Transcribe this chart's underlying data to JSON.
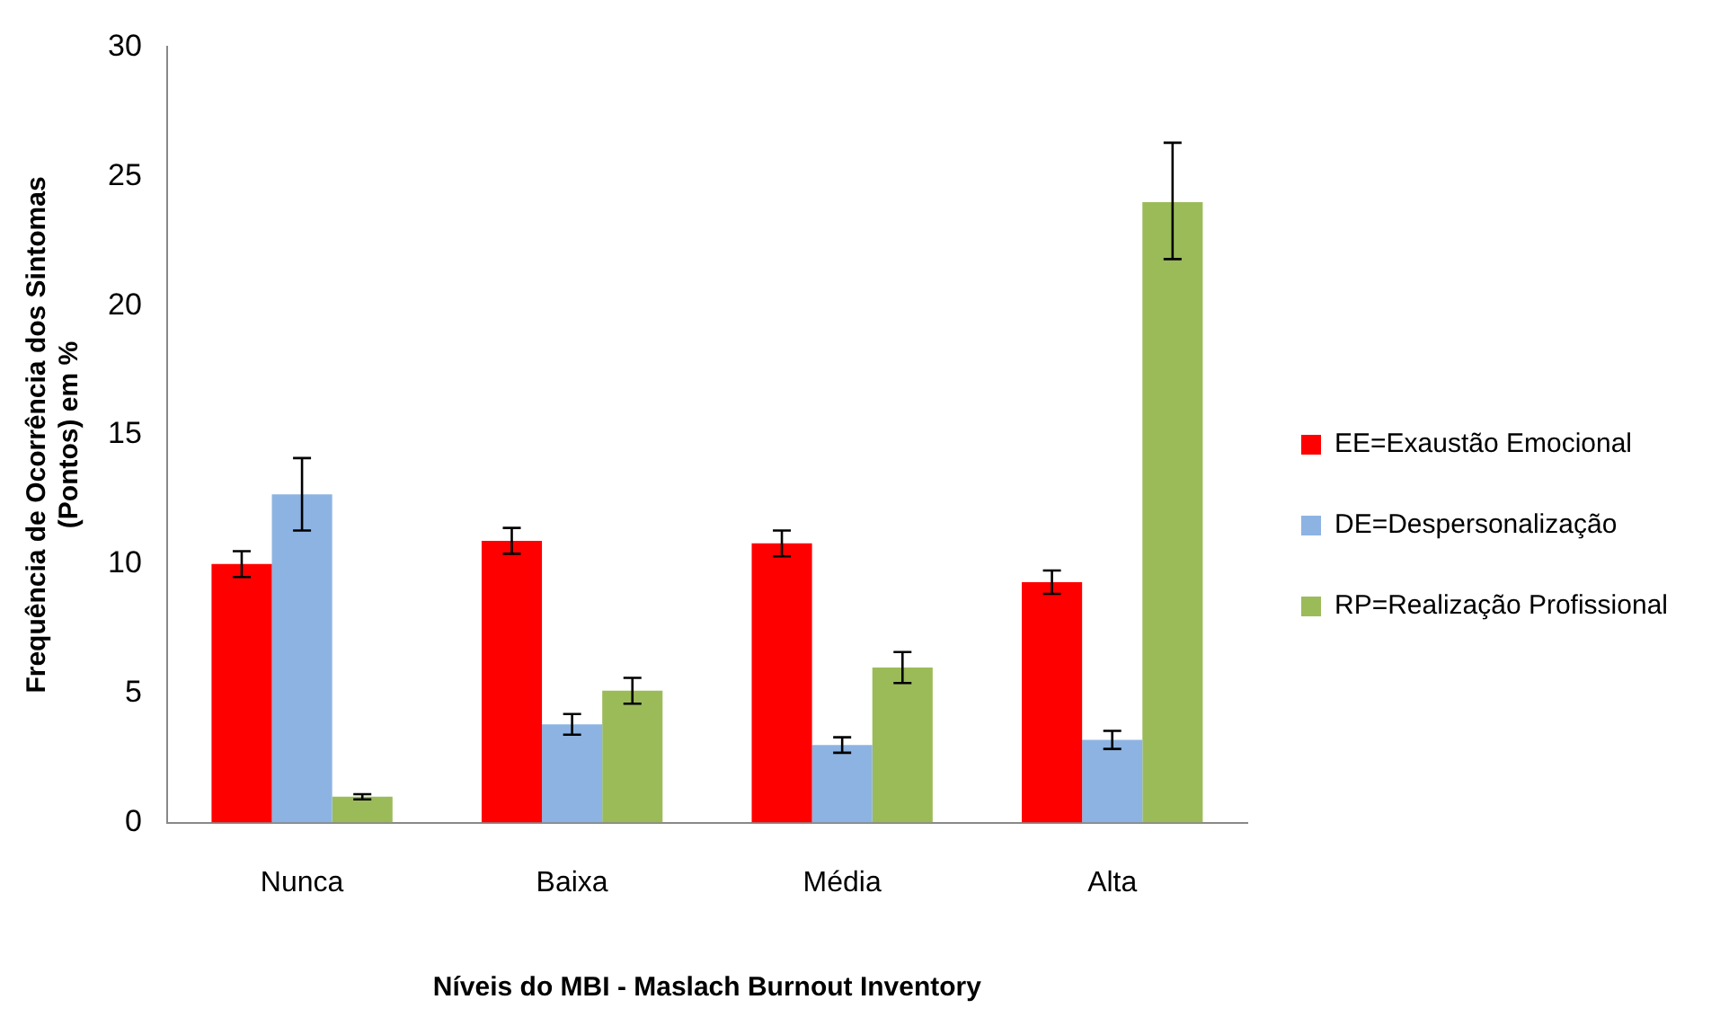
{
  "chart_data": {
    "type": "bar",
    "xlabel": "Níveis do MBI - Maslach Burnout Inventory",
    "ylabel": "Frequência de Ocorrência dos Sintomas\n(Pontos) em %",
    "categories": [
      "Nunca",
      "Baixa",
      "Média",
      "Alta"
    ],
    "series": [
      {
        "name": "EE=Exaustão Emocional",
        "color": "#ff0000",
        "values": [
          10.0,
          10.9,
          10.8,
          9.3
        ],
        "errors": [
          0.5,
          0.5,
          0.5,
          0.45
        ]
      },
      {
        "name": "DE=Despersonalização",
        "color": "#8db3e2",
        "values": [
          12.7,
          3.8,
          3.0,
          3.2
        ],
        "errors": [
          1.4,
          0.4,
          0.3,
          0.35
        ]
      },
      {
        "name": "RP=Realização Profissional",
        "color": "#9bbb59",
        "values": [
          1.0,
          5.1,
          6.0,
          24.0
        ],
        "errors": [
          0.1,
          0.5,
          0.6,
          [
            21.8,
            26.3
          ]
        ]
      }
    ],
    "ylim": [
      0,
      30
    ],
    "yticks": [
      0,
      5,
      10,
      15,
      20,
      25,
      30
    ],
    "grid": false,
    "legend": "right"
  }
}
